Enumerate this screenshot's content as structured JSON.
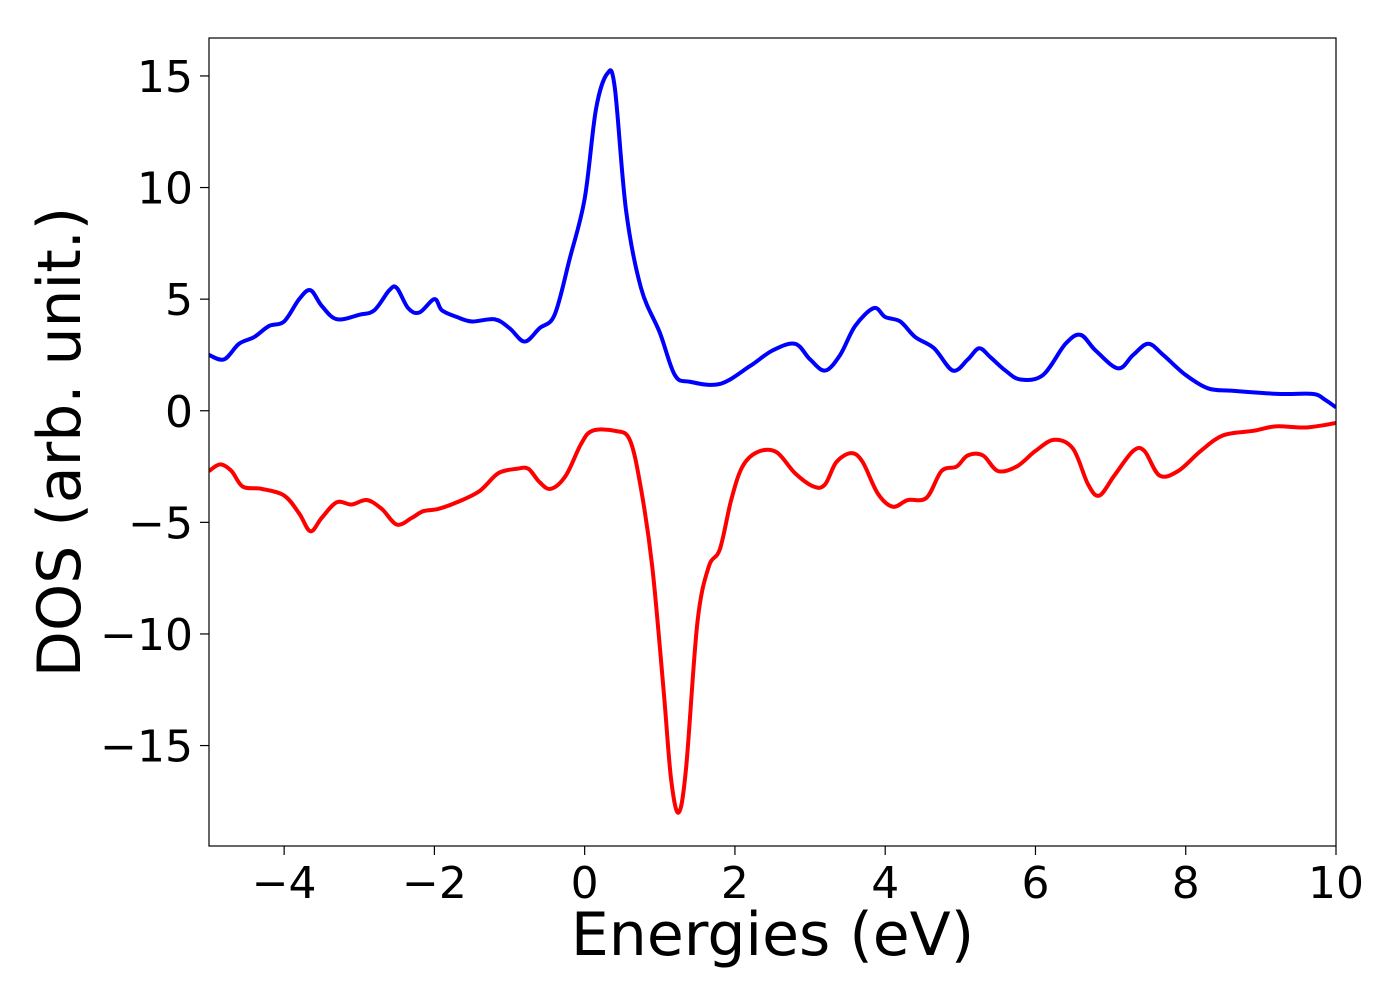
{
  "chart_data": {
    "type": "line",
    "xlabel": "Energies (eV)",
    "ylabel": "DOS (arb. unit.)",
    "xlim": [
      -5,
      10
    ],
    "ylim": [
      -19.5,
      16.7
    ],
    "xticks": [
      -4,
      -2,
      0,
      2,
      4,
      6,
      8,
      10
    ],
    "xtick_labels": [
      "−4",
      "−2",
      "0",
      "2",
      "4",
      "6",
      "8",
      "10"
    ],
    "yticks": [
      15,
      10,
      5,
      0,
      -5,
      -10,
      -15
    ],
    "ytick_labels": [
      "15",
      "10",
      "5",
      "0",
      "−5",
      "−10",
      "−15"
    ],
    "grid": false,
    "series": [
      {
        "color": "#0000ff",
        "points": [
          [
            -5.0,
            2.5
          ],
          [
            -4.8,
            2.3
          ],
          [
            -4.6,
            3.0
          ],
          [
            -4.4,
            3.3
          ],
          [
            -4.2,
            3.8
          ],
          [
            -4.0,
            4.0
          ],
          [
            -3.8,
            5.0
          ],
          [
            -3.65,
            5.4
          ],
          [
            -3.5,
            4.7
          ],
          [
            -3.3,
            4.1
          ],
          [
            -3.0,
            4.3
          ],
          [
            -2.8,
            4.5
          ],
          [
            -2.6,
            5.4
          ],
          [
            -2.5,
            5.5
          ],
          [
            -2.35,
            4.6
          ],
          [
            -2.2,
            4.4
          ],
          [
            -2.0,
            5.0
          ],
          [
            -1.9,
            4.5
          ],
          [
            -1.7,
            4.2
          ],
          [
            -1.5,
            4.0
          ],
          [
            -1.2,
            4.1
          ],
          [
            -1.0,
            3.7
          ],
          [
            -0.8,
            3.1
          ],
          [
            -0.6,
            3.7
          ],
          [
            -0.4,
            4.3
          ],
          [
            -0.2,
            6.8
          ],
          [
            0.0,
            9.5
          ],
          [
            0.15,
            13.5
          ],
          [
            0.3,
            15.1
          ],
          [
            0.4,
            14.5
          ],
          [
            0.55,
            9.0
          ],
          [
            0.75,
            5.5
          ],
          [
            1.0,
            3.5
          ],
          [
            1.2,
            1.6
          ],
          [
            1.4,
            1.3
          ],
          [
            1.8,
            1.2
          ],
          [
            2.2,
            2.0
          ],
          [
            2.5,
            2.7
          ],
          [
            2.8,
            3.0
          ],
          [
            3.0,
            2.3
          ],
          [
            3.2,
            1.8
          ],
          [
            3.4,
            2.5
          ],
          [
            3.6,
            3.8
          ],
          [
            3.85,
            4.6
          ],
          [
            4.0,
            4.2
          ],
          [
            4.2,
            4.0
          ],
          [
            4.4,
            3.3
          ],
          [
            4.65,
            2.8
          ],
          [
            4.9,
            1.8
          ],
          [
            5.1,
            2.3
          ],
          [
            5.25,
            2.8
          ],
          [
            5.4,
            2.4
          ],
          [
            5.6,
            1.8
          ],
          [
            5.8,
            1.4
          ],
          [
            6.1,
            1.6
          ],
          [
            6.4,
            3.0
          ],
          [
            6.6,
            3.4
          ],
          [
            6.8,
            2.7
          ],
          [
            7.1,
            1.9
          ],
          [
            7.3,
            2.5
          ],
          [
            7.5,
            3.0
          ],
          [
            7.7,
            2.5
          ],
          [
            8.0,
            1.6
          ],
          [
            8.3,
            1.0
          ],
          [
            8.6,
            0.9
          ],
          [
            9.0,
            0.8
          ],
          [
            9.3,
            0.75
          ],
          [
            9.7,
            0.75
          ],
          [
            9.85,
            0.5
          ],
          [
            10.0,
            0.15
          ]
        ]
      },
      {
        "color": "#ff0000",
        "points": [
          [
            -5.0,
            -2.7
          ],
          [
            -4.85,
            -2.4
          ],
          [
            -4.7,
            -2.7
          ],
          [
            -4.55,
            -3.4
          ],
          [
            -4.3,
            -3.5
          ],
          [
            -4.0,
            -3.8
          ],
          [
            -3.8,
            -4.6
          ],
          [
            -3.65,
            -5.4
          ],
          [
            -3.5,
            -4.8
          ],
          [
            -3.3,
            -4.1
          ],
          [
            -3.1,
            -4.2
          ],
          [
            -2.9,
            -4.0
          ],
          [
            -2.7,
            -4.4
          ],
          [
            -2.5,
            -5.1
          ],
          [
            -2.3,
            -4.8
          ],
          [
            -2.15,
            -4.5
          ],
          [
            -1.95,
            -4.4
          ],
          [
            -1.7,
            -4.1
          ],
          [
            -1.4,
            -3.6
          ],
          [
            -1.15,
            -2.8
          ],
          [
            -0.9,
            -2.6
          ],
          [
            -0.75,
            -2.6
          ],
          [
            -0.6,
            -3.2
          ],
          [
            -0.45,
            -3.5
          ],
          [
            -0.25,
            -2.9
          ],
          [
            -0.05,
            -1.5
          ],
          [
            0.1,
            -0.9
          ],
          [
            0.4,
            -0.9
          ],
          [
            0.6,
            -1.3
          ],
          [
            0.75,
            -3.5
          ],
          [
            0.9,
            -7.0
          ],
          [
            1.05,
            -12.5
          ],
          [
            1.15,
            -16.5
          ],
          [
            1.25,
            -18.0
          ],
          [
            1.35,
            -16.0
          ],
          [
            1.5,
            -9.5
          ],
          [
            1.65,
            -7.0
          ],
          [
            1.8,
            -6.2
          ],
          [
            1.95,
            -4.0
          ],
          [
            2.1,
            -2.5
          ],
          [
            2.3,
            -1.85
          ],
          [
            2.55,
            -1.85
          ],
          [
            2.8,
            -2.8
          ],
          [
            3.05,
            -3.4
          ],
          [
            3.2,
            -3.3
          ],
          [
            3.35,
            -2.3
          ],
          [
            3.55,
            -1.9
          ],
          [
            3.7,
            -2.3
          ],
          [
            3.9,
            -3.7
          ],
          [
            4.1,
            -4.3
          ],
          [
            4.3,
            -4.0
          ],
          [
            4.55,
            -3.9
          ],
          [
            4.75,
            -2.7
          ],
          [
            4.95,
            -2.5
          ],
          [
            5.1,
            -2.0
          ],
          [
            5.3,
            -2.0
          ],
          [
            5.5,
            -2.7
          ],
          [
            5.75,
            -2.5
          ],
          [
            6.0,
            -1.8
          ],
          [
            6.25,
            -1.3
          ],
          [
            6.5,
            -1.7
          ],
          [
            6.7,
            -3.3
          ],
          [
            6.85,
            -3.8
          ],
          [
            7.05,
            -2.9
          ],
          [
            7.3,
            -1.8
          ],
          [
            7.45,
            -1.8
          ],
          [
            7.65,
            -2.9
          ],
          [
            7.9,
            -2.7
          ],
          [
            8.2,
            -1.8
          ],
          [
            8.5,
            -1.1
          ],
          [
            8.9,
            -0.9
          ],
          [
            9.2,
            -0.7
          ],
          [
            9.6,
            -0.75
          ],
          [
            10.0,
            -0.55
          ]
        ]
      }
    ]
  }
}
